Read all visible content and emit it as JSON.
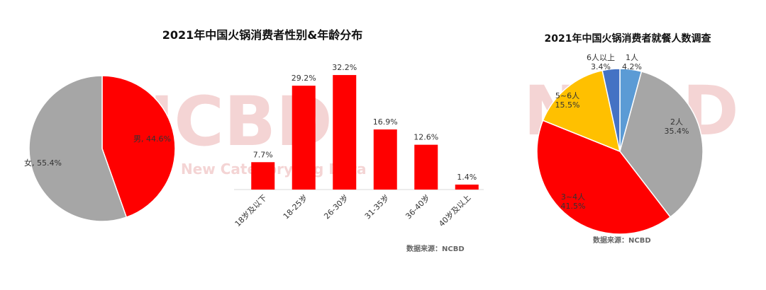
{
  "titles": {
    "left": "2021年中国火锅消费者性别&年龄分布",
    "right": "2021年中国火锅消费者就餐人数调查"
  },
  "source_left": "数据来源：NCBD",
  "source_right": "数据来源：NCBD",
  "watermark": {
    "text": "NCBD",
    "subtext": "New Category Big Data"
  },
  "colors": {
    "red": "#ff0000",
    "gray": "#a6a6a6",
    "yellow": "#ffc000",
    "blue": "#5b9bd5",
    "dark_blue": "#4472c4"
  },
  "chart_data": [
    {
      "type": "pie",
      "labels": [
        "男",
        "女"
      ],
      "values": [
        44.6,
        55.4
      ],
      "display_labels": [
        "男, 44.6%",
        "女, 55.4%"
      ],
      "colors": [
        "#ff0000",
        "#a6a6a6"
      ]
    },
    {
      "type": "bar",
      "categories": [
        "18岁及以下",
        "18-25岁",
        "26-30岁",
        "31-35岁",
        "36-40岁",
        "40岁及以上"
      ],
      "values": [
        7.7,
        29.2,
        32.2,
        16.9,
        12.6,
        1.4
      ],
      "value_labels": [
        "7.7%",
        "29.2%",
        "32.2%",
        "16.9%",
        "12.6%",
        "1.4%"
      ],
      "ylim": [
        0,
        35
      ],
      "grid": false,
      "color": "#ff0000"
    },
    {
      "type": "pie",
      "labels": [
        "1人",
        "2人",
        "3~4人",
        "5~6人",
        "6人以上"
      ],
      "values": [
        4.2,
        35.4,
        41.5,
        15.5,
        3.4
      ],
      "display_labels": [
        [
          "1人",
          "4.2%"
        ],
        [
          "2人",
          "35.4%"
        ],
        [
          "3~4人",
          "41.5%"
        ],
        [
          "5~6人",
          "15.5%"
        ],
        [
          "6人以上",
          "3.4%"
        ]
      ],
      "colors": [
        "#5b9bd5",
        "#a6a6a6",
        "#ff0000",
        "#ffc000",
        "#4472c4"
      ]
    }
  ]
}
